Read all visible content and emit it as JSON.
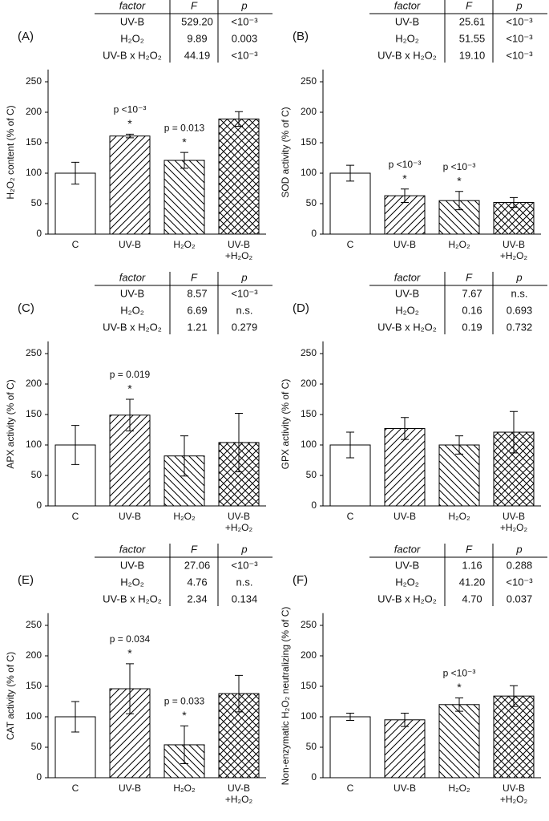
{
  "chart_data": [
    {
      "type": "bar",
      "label": "(A)",
      "table": {
        "header": [
          "factor",
          "F",
          "p"
        ],
        "rows": [
          [
            "UV-B",
            "529.20",
            "<10⁻³"
          ],
          [
            "H₂O₂",
            "9.89",
            "0.003"
          ],
          [
            "UV-B x H₂O₂",
            "44.19",
            "<10⁻³"
          ]
        ]
      },
      "y_label": "H₂O₂ content (% of C)",
      "categories": [
        "C",
        "UV-B",
        "H₂O₂",
        "UV-B +H₂O₂"
      ],
      "values": [
        100,
        161,
        121,
        189
      ],
      "errors": [
        18,
        3,
        13,
        12
      ],
      "annotations": [
        null,
        {
          "text": "p <10⁻³",
          "star": "*"
        },
        {
          "text": "p = 0.013",
          "star": "*"
        },
        null
      ],
      "ylim": [
        0,
        270
      ],
      "yticks": [
        0,
        50,
        100,
        150,
        200,
        250
      ],
      "hatches": [
        "none",
        "/",
        "\\",
        "x"
      ],
      "color": "#000000"
    },
    {
      "type": "bar",
      "label": "(B)",
      "table": {
        "header": [
          "factor",
          "F",
          "p"
        ],
        "rows": [
          [
            "UV-B",
            "25.61",
            "<10⁻³"
          ],
          [
            "H₂O₂",
            "51.55",
            "<10⁻³"
          ],
          [
            "UV-B x H₂O₂",
            "19.10",
            "<10⁻³"
          ]
        ]
      },
      "y_label": "SOD activity (% of C)",
      "categories": [
        "C",
        "UV-B",
        "H₂O₂",
        "UV-B +H₂O₂"
      ],
      "values": [
        100,
        63,
        55,
        52
      ],
      "errors": [
        13,
        11,
        15,
        8
      ],
      "annotations": [
        null,
        {
          "text": "p <10⁻³",
          "star": "*"
        },
        {
          "text": "p <10⁻³",
          "star": "*"
        },
        null
      ],
      "ylim": [
        0,
        270
      ],
      "yticks": [
        0,
        50,
        100,
        150,
        200,
        250
      ],
      "hatches": [
        "none",
        "/",
        "\\",
        "x"
      ],
      "color": "#000000"
    },
    {
      "type": "bar",
      "label": "(C)",
      "table": {
        "header": [
          "factor",
          "F",
          "p"
        ],
        "rows": [
          [
            "UV-B",
            "8.57",
            "<10⁻³"
          ],
          [
            "H₂O₂",
            "6.69",
            "n.s."
          ],
          [
            "UV-B x H₂O₂",
            "1.21",
            "0.279"
          ]
        ]
      },
      "y_label": "APX activity (% of C)",
      "categories": [
        "C",
        "UV-B",
        "H₂O₂",
        "UV-B +H₂O₂"
      ],
      "values": [
        100,
        149,
        82,
        104
      ],
      "errors": [
        32,
        26,
        33,
        48
      ],
      "annotations": [
        null,
        {
          "text": "p = 0.019",
          "star": "*"
        },
        null,
        null
      ],
      "ylim": [
        0,
        270
      ],
      "yticks": [
        0,
        50,
        100,
        150,
        200,
        250
      ],
      "hatches": [
        "none",
        "/",
        "\\",
        "x"
      ],
      "color": "#000000"
    },
    {
      "type": "bar",
      "label": "(D)",
      "table": {
        "header": [
          "factor",
          "F",
          "p"
        ],
        "rows": [
          [
            "UV-B",
            "7.67",
            "n.s."
          ],
          [
            "H₂O₂",
            "0.16",
            "0.693"
          ],
          [
            "UV-B x H₂O₂",
            "0.19",
            "0.732"
          ]
        ]
      },
      "y_label": "GPX activity (% of C)",
      "categories": [
        "C",
        "UV-B",
        "H₂O₂",
        "UV-B +H₂O₂"
      ],
      "values": [
        100,
        127,
        100,
        121
      ],
      "errors": [
        21,
        18,
        15,
        34
      ],
      "annotations": [
        null,
        null,
        null,
        null
      ],
      "ylim": [
        0,
        270
      ],
      "yticks": [
        0,
        50,
        100,
        150,
        200,
        250
      ],
      "hatches": [
        "none",
        "/",
        "\\",
        "x"
      ],
      "color": "#000000"
    },
    {
      "type": "bar",
      "label": "(E)",
      "table": {
        "header": [
          "factor",
          "F",
          "p"
        ],
        "rows": [
          [
            "UV-B",
            "27.06",
            "<10⁻³"
          ],
          [
            "H₂O₂",
            "4.76",
            "n.s."
          ],
          [
            "UV-B x H₂O₂",
            "2.34",
            "0.134"
          ]
        ]
      },
      "y_label": "CAT activity (% of C)",
      "categories": [
        "C",
        "UV-B",
        "H₂O₂",
        "UV-B +H₂O₂"
      ],
      "values": [
        100,
        146,
        54,
        138
      ],
      "errors": [
        25,
        41,
        31,
        30
      ],
      "annotations": [
        null,
        {
          "text": "p = 0.034",
          "star": "*"
        },
        {
          "text": "p = 0.033",
          "star": "*"
        },
        null
      ],
      "ylim": [
        0,
        270
      ],
      "yticks": [
        0,
        50,
        100,
        150,
        200,
        250
      ],
      "hatches": [
        "none",
        "/",
        "\\",
        "x"
      ],
      "color": "#000000"
    },
    {
      "type": "bar",
      "label": "(F)",
      "table": {
        "header": [
          "factor",
          "F",
          "p"
        ],
        "rows": [
          [
            "UV-B",
            "1.16",
            "0.288"
          ],
          [
            "H₂O₂",
            "41.20",
            "<10⁻³"
          ],
          [
            "UV-B x H₂O₂",
            "4.70",
            "0.037"
          ]
        ]
      },
      "y_label": "Non-enzymatic H₂O₂ neutralizing (% of C)",
      "categories": [
        "C",
        "UV-B",
        "H₂O₂",
        "UV-B +H₂O₂"
      ],
      "values": [
        100,
        95,
        120,
        134
      ],
      "errors": [
        6,
        11,
        11,
        17
      ],
      "annotations": [
        null,
        null,
        {
          "text": "p <10⁻³",
          "star": "*"
        },
        null
      ],
      "ylim": [
        0,
        270
      ],
      "yticks": [
        0,
        50,
        100,
        150,
        200,
        250
      ],
      "hatches": [
        "none",
        "/",
        "\\",
        "x"
      ],
      "color": "#000000"
    }
  ]
}
